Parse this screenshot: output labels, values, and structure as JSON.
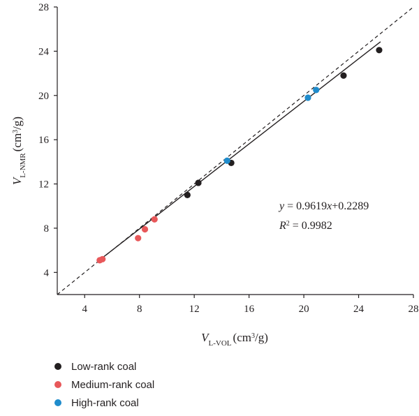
{
  "chart_data": {
    "type": "scatter",
    "xlim": [
      2,
      28
    ],
    "ylim": [
      2,
      28
    ],
    "x_ticks": [
      "4",
      "8",
      "12",
      "16",
      "20",
      "24",
      "28"
    ],
    "y_ticks": [
      "4",
      "8",
      "12",
      "16",
      "20",
      "24",
      "28"
    ],
    "xlabel": {
      "symbol": "V",
      "subscript": "L-VOL",
      "unit": "(cm",
      "unit_sup": "3",
      "unit_end": "/g)"
    },
    "ylabel": {
      "symbol": "V",
      "subscript": "L-NMR",
      "unit": "(cm",
      "unit_sup": "3",
      "unit_end": "/g)"
    },
    "series": [
      {
        "name": "Low-rank coal",
        "color": "#231f20",
        "points": [
          [
            11.5,
            11.0
          ],
          [
            12.3,
            12.1
          ],
          [
            14.7,
            13.9
          ],
          [
            22.9,
            21.8
          ],
          [
            25.5,
            24.1
          ]
        ]
      },
      {
        "name": "Medium-rank coal",
        "color": "#e8585a",
        "points": [
          [
            5.1,
            5.1
          ],
          [
            5.3,
            5.2
          ],
          [
            7.9,
            7.1
          ],
          [
            8.4,
            7.9
          ],
          [
            9.1,
            8.8
          ]
        ]
      },
      {
        "name": "High-rank coal",
        "color": "#1f8ccc",
        "points": [
          [
            14.4,
            14.1
          ],
          [
            20.3,
            19.8
          ],
          [
            20.9,
            20.5
          ]
        ]
      }
    ],
    "fit_line": {
      "slope": 0.9619,
      "intercept": 0.2289,
      "x_range": [
        5.0,
        25.6
      ]
    },
    "reference_line": {
      "style": "dashed",
      "slope": 1,
      "intercept": 0
    },
    "annotation": {
      "eq_y": "y",
      "eq_mid": " = 0.9619",
      "eq_x": "x",
      "eq_end": "+0.2289",
      "r2_label": "R",
      "r2_sup": "2",
      "r2_value": " = 0.9982"
    },
    "grid": false,
    "legend_position": "bottom-left"
  }
}
